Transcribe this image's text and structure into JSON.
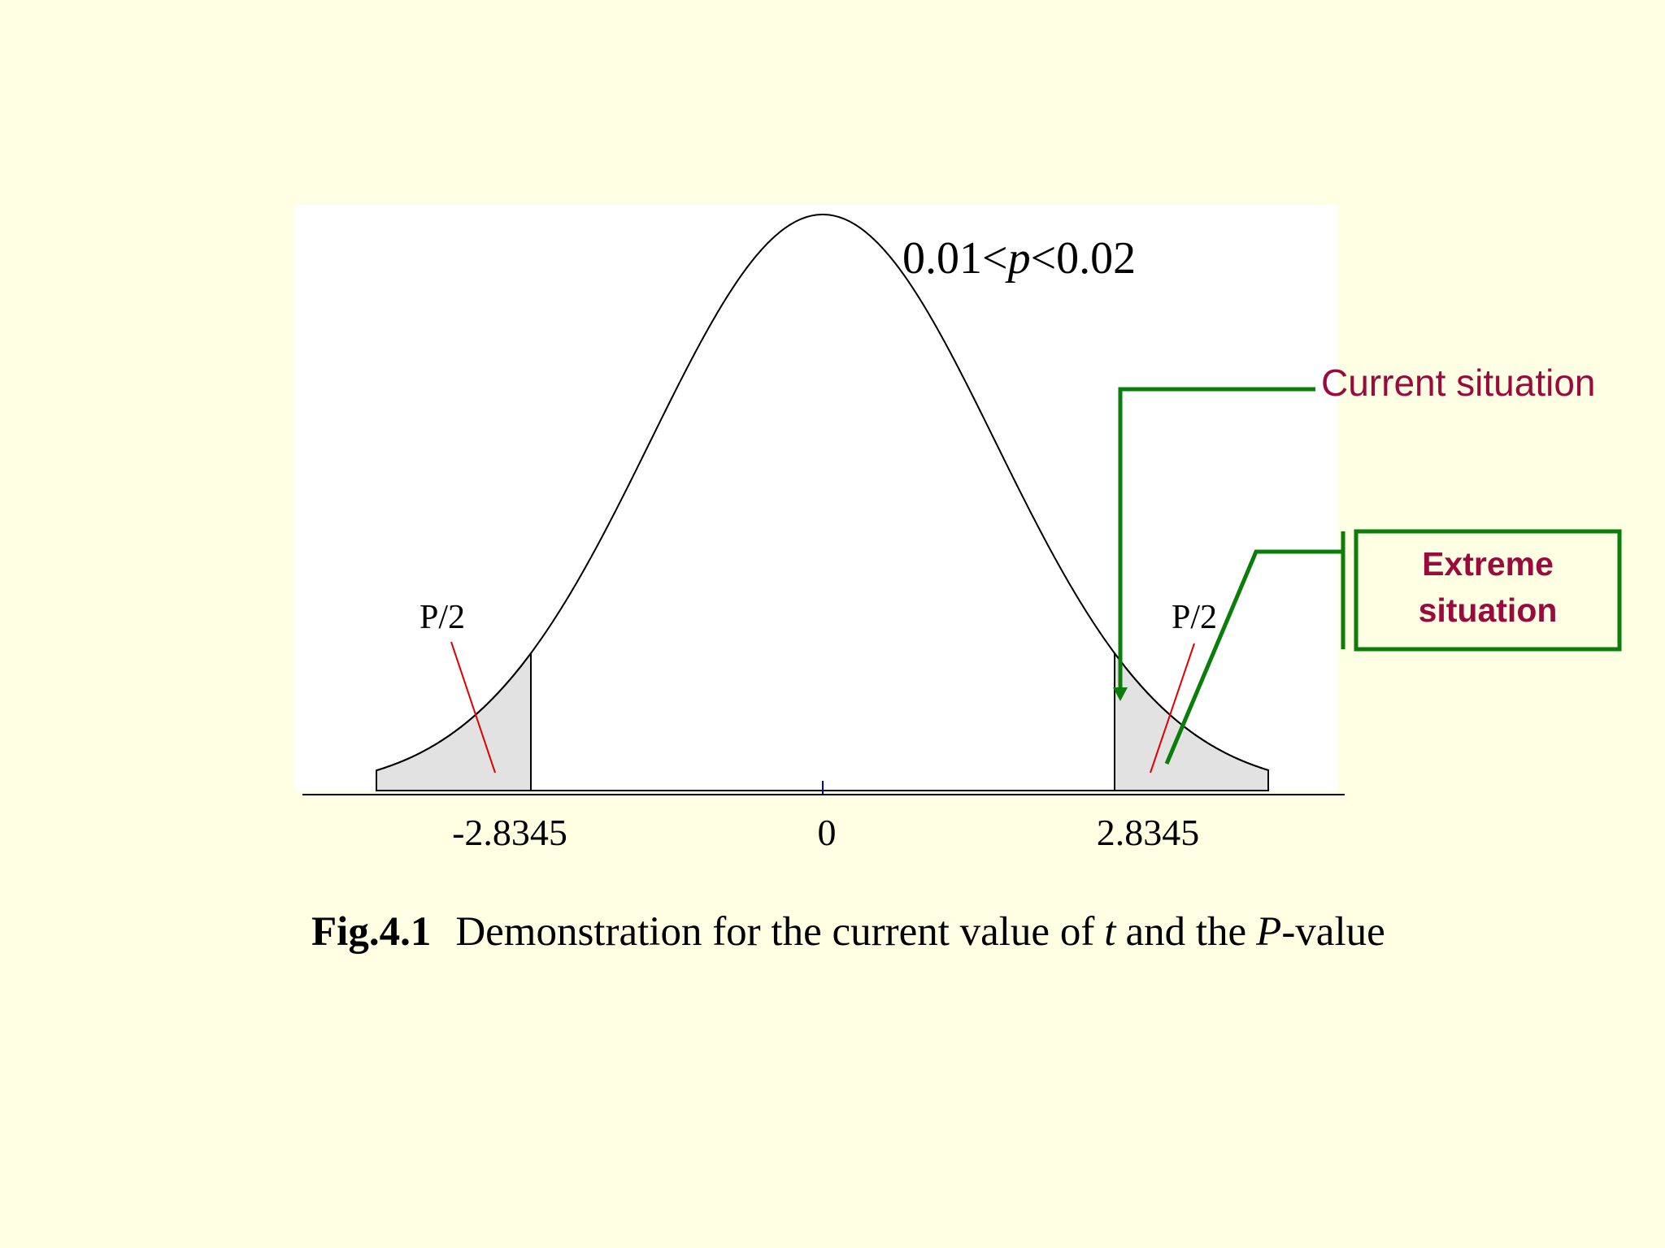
{
  "colors": {
    "background": "#FFFFE3",
    "plot_area": "#FFFFFF",
    "curve": "#000000",
    "tail_fill": "#E2E2E2",
    "pointer_red": "#E00000",
    "arrow_green": "#0A7D0A",
    "label_maroon": "#9B0A3C",
    "center_tick": "#0000CC"
  },
  "figure": {
    "p_range_prefix": "0.01<",
    "p_range_var": "p",
    "p_range_suffix": "<0.02",
    "left_tail_label": "P/2",
    "right_tail_label": "P/2",
    "tick_left": "-2.8345",
    "tick_center": "0",
    "tick_right": "2.8345",
    "current_situation_label": "Current situation",
    "extreme_situation_line1": "Extreme",
    "extreme_situation_line2": "situation"
  },
  "caption": {
    "fig_number": "Fig.4.1",
    "text_part1": "Demonstration for the current value of",
    "var_t": "t",
    "text_part2": "and the",
    "var_P": "P",
    "text_part3": "-value"
  }
}
